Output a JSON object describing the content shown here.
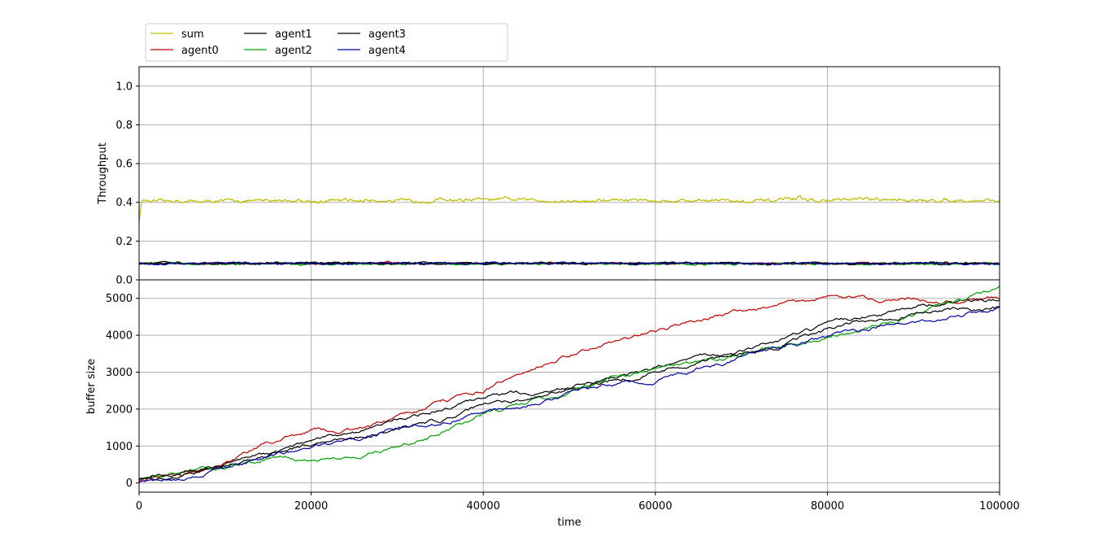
{
  "chart_data": [
    {
      "type": "line",
      "title": "",
      "xlabel": "",
      "ylabel": "Throughput",
      "xlim": [
        0,
        100000
      ],
      "ylim": [
        0,
        1.1
      ],
      "yticks": [
        "0.0",
        "0.2",
        "0.4",
        "0.6",
        "0.8",
        "1.0"
      ],
      "grid": true,
      "legend": {
        "placement": "above-top-left",
        "columns": 4
      },
      "series": [
        {
          "name": "sum",
          "color": "#bfbf00",
          "base": 0.41,
          "noise": 0.025,
          "start": 0.3,
          "x": [
            0,
            100000
          ],
          "values": [
            0.41,
            0.41
          ]
        },
        {
          "name": "agent0",
          "color": "#bf0000",
          "base": 0.085,
          "noise": 0.012,
          "x": [
            0,
            100000
          ],
          "values": [
            0.085,
            0.085
          ]
        },
        {
          "name": "agent1",
          "color": "#000000",
          "base": 0.085,
          "noise": 0.012,
          "x": [
            0,
            100000
          ],
          "values": [
            0.085,
            0.085
          ]
        },
        {
          "name": "agent2",
          "color": "#00a000",
          "base": 0.082,
          "noise": 0.012,
          "x": [
            0,
            100000
          ],
          "values": [
            0.082,
            0.082
          ]
        },
        {
          "name": "agent3",
          "color": "#000000",
          "base": 0.085,
          "noise": 0.012,
          "x": [
            0,
            100000
          ],
          "values": [
            0.085,
            0.085
          ]
        },
        {
          "name": "agent4",
          "color": "#0000a0",
          "base": 0.085,
          "noise": 0.012,
          "x": [
            0,
            100000
          ],
          "values": [
            0.085,
            0.085
          ]
        }
      ]
    },
    {
      "type": "line",
      "title": "",
      "xlabel": "time",
      "ylabel": "buffer size",
      "xlim": [
        0,
        100000
      ],
      "ylim": [
        -250,
        5500
      ],
      "xticks": [
        "0",
        "20000",
        "40000",
        "60000",
        "80000",
        "100000"
      ],
      "yticks": [
        "0",
        "1000",
        "2000",
        "3000",
        "4000",
        "5000"
      ],
      "grid": true,
      "series": [
        {
          "name": "agent0",
          "color": "#bf0000",
          "x": [
            0,
            5000,
            10000,
            15000,
            20000,
            25000,
            30000,
            35000,
            40000,
            45000,
            50000,
            55000,
            60000,
            65000,
            70000,
            75000,
            80000,
            85000,
            90000,
            95000,
            100000
          ],
          "values": [
            50,
            250,
            550,
            1050,
            1450,
            1450,
            1750,
            2150,
            2500,
            3000,
            3450,
            3800,
            4100,
            4400,
            4700,
            4850,
            5000,
            4950,
            5000,
            4950,
            5000
          ]
        },
        {
          "name": "agent1",
          "color": "#000000",
          "x": [
            0,
            5000,
            10000,
            15000,
            20000,
            25000,
            30000,
            35000,
            40000,
            45000,
            50000,
            55000,
            60000,
            65000,
            70000,
            75000,
            80000,
            85000,
            90000,
            95000,
            100000
          ],
          "values": [
            80,
            200,
            450,
            800,
            1100,
            1350,
            1700,
            2000,
            2250,
            2450,
            2600,
            2800,
            3050,
            3300,
            3600,
            3900,
            4200,
            4550,
            4800,
            4900,
            4950
          ]
        },
        {
          "name": "agent2",
          "color": "#00a000",
          "x": [
            0,
            5000,
            10000,
            15000,
            20000,
            25000,
            30000,
            35000,
            40000,
            45000,
            50000,
            55000,
            60000,
            65000,
            70000,
            75000,
            80000,
            85000,
            90000,
            95000,
            100000
          ],
          "values": [
            100,
            300,
            450,
            650,
            600,
            750,
            950,
            1300,
            1850,
            2150,
            2500,
            2850,
            3050,
            3300,
            3500,
            3700,
            4000,
            4250,
            4550,
            4900,
            5300
          ]
        },
        {
          "name": "agent3",
          "color": "#000000",
          "x": [
            0,
            5000,
            10000,
            15000,
            20000,
            25000,
            30000,
            35000,
            40000,
            45000,
            50000,
            55000,
            60000,
            65000,
            70000,
            75000,
            80000,
            85000,
            90000,
            95000,
            100000
          ],
          "values": [
            100,
            250,
            500,
            800,
            1050,
            1250,
            1450,
            1700,
            2050,
            2300,
            2550,
            2800,
            3000,
            3300,
            3500,
            3750,
            4100,
            4400,
            4650,
            4700,
            4800
          ]
        },
        {
          "name": "agent4",
          "color": "#0000a0",
          "x": [
            0,
            5000,
            10000,
            15000,
            20000,
            25000,
            30000,
            35000,
            40000,
            45000,
            50000,
            55000,
            60000,
            65000,
            70000,
            75000,
            80000,
            85000,
            90000,
            95000,
            100000
          ],
          "values": [
            50,
            150,
            450,
            650,
            950,
            1150,
            1450,
            1650,
            1950,
            2200,
            2450,
            2650,
            2800,
            3100,
            3400,
            3700,
            3950,
            4200,
            4350,
            4500,
            4750
          ]
        }
      ]
    }
  ]
}
